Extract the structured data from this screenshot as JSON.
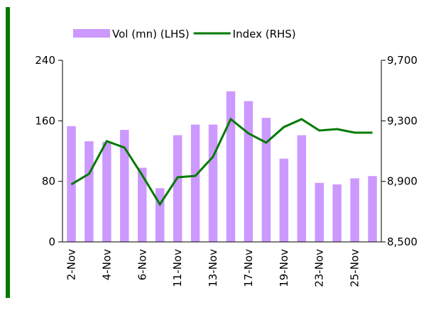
{
  "chart_data": {
    "type": "bar-line",
    "categories": [
      "2-Nov",
      null,
      "4-Nov",
      null,
      "6-Nov",
      null,
      "11-Nov",
      null,
      "13-Nov",
      null,
      "17-Nov",
      null,
      "19-Nov",
      null,
      "23-Nov",
      null,
      "25-Nov",
      null
    ],
    "series": [
      {
        "name": "Vol (mn) (LHS)",
        "color": "#cc99ff",
        "type": "bar",
        "values": [
          153,
          133,
          132,
          148,
          98,
          71,
          141,
          155,
          155,
          199,
          186,
          164,
          110,
          141,
          78,
          76,
          84,
          87
        ]
      },
      {
        "name": "Index (RHS)",
        "color": "#007a00",
        "type": "line",
        "axis": "y2",
        "values": [
          8880,
          8950,
          9166,
          9123,
          8941,
          8748,
          8927,
          8936,
          9063,
          9311,
          9217,
          9156,
          9259,
          9311,
          9236,
          9245,
          9222,
          9222
        ]
      }
    ],
    "ylim": [
      0,
      240
    ],
    "yticks": [
      0,
      80,
      160,
      240
    ],
    "y2lim": [
      8500,
      9700
    ],
    "y2ticks": [
      {
        "value": 8500,
        "label": "8,500"
      },
      {
        "value": 8900,
        "label": "8,900"
      },
      {
        "value": 9300,
        "label": "9,300"
      },
      {
        "value": 9700,
        "label": "9,700"
      }
    ],
    "legend": "top"
  }
}
